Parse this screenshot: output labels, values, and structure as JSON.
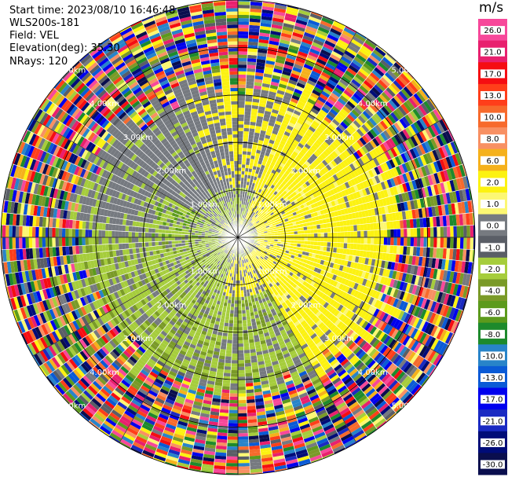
{
  "header": {
    "start_time": "Start time: 2023/08/10 16:46:48",
    "instrument": "WLS200s-181",
    "field": "Field: VEL",
    "elevation": "Elevation(deg): 35.30",
    "nrays": "NRays: 120"
  },
  "chart_data": {
    "type": "heatmap",
    "subtype": "ppi-polar",
    "field": "VEL",
    "unit": "m/s",
    "nrays": 120,
    "range_rings": [
      {
        "label": "1.00km",
        "range_km": 1.0
      },
      {
        "label": "2.00km",
        "range_km": 2.0
      },
      {
        "label": "3.00km",
        "range_km": 3.0
      },
      {
        "label": "4.00km",
        "range_km": 4.0
      },
      {
        "label": "5.00km",
        "range_km": 5.0
      }
    ],
    "max_range_km": 5.0,
    "colorbar": {
      "ticks": [
        "26.0",
        "21.0",
        "17.0",
        "13.0",
        "10.0",
        "8.0",
        "6.0",
        "2.0",
        "1.0",
        "0.0",
        "-1.0",
        "-2.0",
        "-4.0",
        "-6.0",
        "-8.0",
        "-10.0",
        "-13.0",
        "-17.0",
        "-21.0",
        "-26.0",
        "-30.0"
      ],
      "colors": [
        "#f7489a",
        "#e8206e",
        "#f50d12",
        "#ff3e1a",
        "#f76a2c",
        "#f89063",
        "#f5b11c",
        "#fcf211",
        "#fcf773",
        "#767a80",
        "#5a5e66",
        "#a6cd3c",
        "#7a9a28",
        "#5c9a1c",
        "#1d8a2c",
        "#2884c9",
        "#0a5ad6",
        "#0000ee",
        "#1a2ac2",
        "#000c78",
        "#0a0e4e"
      ]
    },
    "pattern": {
      "clutter_start_km": 3.3,
      "near_field_km": 0.4,
      "description_values": {
        "east_half": "1.0 to 2.0",
        "west_center": "-2.0 to -4.0",
        "south": "-2.0",
        "north_west": "0.0"
      }
    }
  }
}
